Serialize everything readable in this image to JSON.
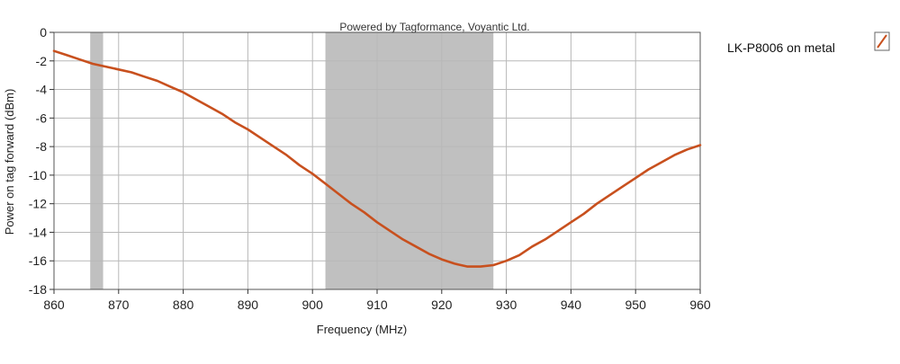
{
  "watermark": "Powered by Tagformance, Voyantic Ltd.",
  "chart_data": {
    "type": "line",
    "xlabel": "Frequency (MHz)",
    "ylabel": "Power on tag forward (dBm)",
    "xlim": [
      860,
      960
    ],
    "ylim": [
      -18,
      0
    ],
    "x_ticks": [
      860,
      870,
      880,
      890,
      900,
      910,
      920,
      930,
      940,
      950,
      960
    ],
    "y_ticks": [
      0,
      -2,
      -4,
      -6,
      -8,
      -10,
      -12,
      -14,
      -16,
      -18
    ],
    "grid": true,
    "legend_position": "top-right",
    "shaded_bands": [
      {
        "x_start": 865.6,
        "x_end": 867.6,
        "color": "#c0c0c0"
      },
      {
        "x_start": 902,
        "x_end": 928,
        "color": "#c0c0c0"
      }
    ],
    "series": [
      {
        "name": "LK-P8006  on metal",
        "color": "#c8501e",
        "x": [
          860,
          862,
          864,
          866,
          868,
          870,
          872,
          874,
          876,
          878,
          880,
          882,
          884,
          886,
          888,
          890,
          892,
          894,
          896,
          898,
          900,
          902,
          904,
          906,
          908,
          910,
          912,
          914,
          916,
          918,
          920,
          922,
          924,
          926,
          928,
          930,
          932,
          934,
          936,
          938,
          940,
          942,
          944,
          946,
          948,
          950,
          952,
          954,
          956,
          958,
          960
        ],
        "y": [
          -1.3,
          -1.6,
          -1.9,
          -2.2,
          -2.4,
          -2.6,
          -2.8,
          -3.1,
          -3.4,
          -3.8,
          -4.2,
          -4.7,
          -5.2,
          -5.7,
          -6.3,
          -6.8,
          -7.4,
          -8.0,
          -8.6,
          -9.3,
          -9.9,
          -10.6,
          -11.3,
          -12.0,
          -12.6,
          -13.3,
          -13.9,
          -14.5,
          -15.0,
          -15.5,
          -15.9,
          -16.2,
          -16.4,
          -16.4,
          -16.3,
          -16.0,
          -15.6,
          -15.0,
          -14.5,
          -13.9,
          -13.3,
          -12.7,
          -12.0,
          -11.4,
          -10.8,
          -10.2,
          -9.6,
          -9.1,
          -8.6,
          -8.2,
          -7.9
        ]
      }
    ]
  }
}
